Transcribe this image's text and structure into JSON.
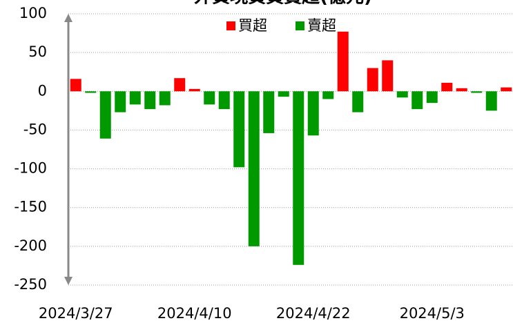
{
  "chart_data": {
    "type": "bar",
    "title": "外資現貨買賣超(億元)",
    "categories": [
      "2024/3/27",
      null,
      null,
      null,
      null,
      null,
      null,
      null,
      "2024/4/10",
      null,
      null,
      null,
      null,
      null,
      null,
      null,
      "2024/4/22",
      null,
      null,
      null,
      null,
      null,
      null,
      null,
      "2024/5/3",
      null,
      null,
      null,
      null,
      null
    ],
    "values": [
      16,
      -2,
      -61,
      -27,
      -17,
      -23,
      -18,
      17,
      3,
      -17,
      -23,
      -98,
      -200,
      -54,
      -7,
      -224,
      -57,
      -10,
      77,
      -27,
      30,
      40,
      -8,
      -23,
      -15,
      11,
      4,
      -2,
      -25,
      5
    ],
    "series": [
      {
        "name": "買超",
        "color": "#ff0000"
      },
      {
        "name": "賣超",
        "color": "#009900"
      }
    ],
    "ylim": [
      -250,
      100
    ],
    "yticks": [
      -250,
      -200,
      -150,
      -100,
      -50,
      0,
      50,
      100
    ],
    "grid": true
  }
}
